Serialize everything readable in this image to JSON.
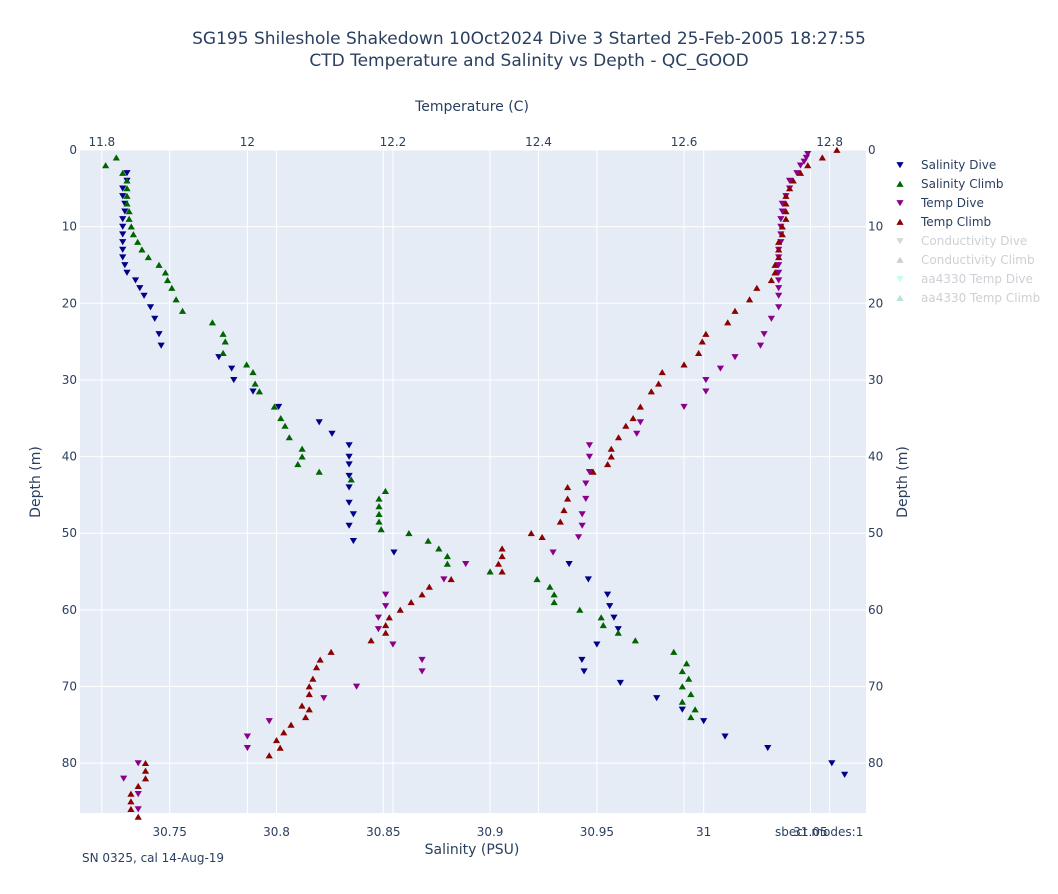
{
  "chart_data": {
    "type": "scatter",
    "title_lines": [
      "SG195 Shileshole Shakedown 10Oct2024 Dive 3 Started 25-Feb-2005 18:27:55",
      "CTD Temperature and Salinity vs Depth - QC_GOOD"
    ],
    "xlabel_top": "Temperature (C)",
    "xlabel_bottom": "Salinity (PSU)",
    "ylabel": "Depth (m)",
    "temp_axis": {
      "range": [
        11.77,
        12.85
      ],
      "ticks": [
        11.8,
        12,
        12.2,
        12.4,
        12.6,
        12.8
      ],
      "tick_labels": [
        "11.8",
        "12",
        "12.2",
        "12.4",
        "12.6",
        "12.8"
      ]
    },
    "salinity_axis": {
      "range": [
        30.708,
        31.076
      ],
      "ticks": [
        30.75,
        30.8,
        30.85,
        30.9,
        30.95,
        31,
        31.05
      ],
      "tick_labels": [
        "30.75",
        "30.8",
        "30.85",
        "30.9",
        "30.95",
        "31",
        "31.05"
      ]
    },
    "depth_axis": {
      "range": [
        0,
        86.5
      ],
      "reversed": true,
      "ticks": [
        0,
        10,
        20,
        30,
        40,
        50,
        60,
        70,
        80
      ],
      "tick_labels": [
        "0",
        "10",
        "20",
        "30",
        "40",
        "50",
        "60",
        "70",
        "80"
      ]
    },
    "grid": true,
    "legend_position": "right",
    "legend": [
      {
        "name": "Salinity Dive",
        "color": "#00008b",
        "marker": "triangle-down",
        "visible": true
      },
      {
        "name": "Salinity Climb",
        "color": "#006400",
        "marker": "triangle-up",
        "visible": true
      },
      {
        "name": "Temp Dive",
        "color": "#8b008b",
        "marker": "triangle-down",
        "visible": true
      },
      {
        "name": "Temp Climb",
        "color": "#8b0000",
        "marker": "triangle-up",
        "visible": true
      },
      {
        "name": "Conductivity Dive",
        "color": "#b0b0b0",
        "marker": "triangle-down",
        "visible": false
      },
      {
        "name": "Conductivity Climb",
        "color": "#a0a0a0",
        "marker": "triangle-up",
        "visible": false
      },
      {
        "name": "aa4330 Temp Dive",
        "color": "#7fffd4",
        "marker": "triangle-down",
        "visible": false
      },
      {
        "name": "aa4330 Temp Climb",
        "color": "#66cdaa",
        "marker": "triangle-up",
        "visible": false
      }
    ],
    "series": [
      {
        "name": "Salinity Dive",
        "axis": "salinity",
        "color": "#00008b",
        "marker": "triangle-down",
        "depth": [
          3,
          4,
          5,
          6,
          7,
          8,
          9,
          10,
          11,
          12,
          13,
          14,
          15,
          16,
          17,
          18,
          19,
          20.5,
          22,
          24,
          25.5,
          27,
          28.5,
          30,
          31.5,
          33.5,
          35.5,
          37,
          38.5,
          40,
          41,
          42.5,
          44,
          46,
          47.5,
          49,
          51,
          52.5,
          54,
          56,
          58,
          59.5,
          61,
          62.5,
          64.5,
          66.5,
          68,
          69.5,
          71.5,
          73,
          74.5,
          76.5,
          78,
          80,
          81.5
        ],
        "values": [
          30.73,
          30.73,
          30.728,
          30.728,
          30.729,
          30.729,
          30.728,
          30.728,
          30.728,
          30.728,
          30.728,
          30.728,
          30.729,
          30.73,
          30.734,
          30.736,
          30.738,
          30.741,
          30.743,
          30.745,
          30.746,
          30.773,
          30.779,
          30.78,
          30.789,
          30.801,
          30.82,
          30.826,
          30.834,
          30.834,
          30.834,
          30.834,
          30.834,
          30.834,
          30.836,
          30.834,
          30.836,
          30.855,
          30.937,
          30.946,
          30.955,
          30.956,
          30.958,
          30.96,
          30.95,
          30.943,
          30.944,
          30.961,
          30.978,
          30.99,
          31.0,
          31.01,
          31.03,
          31.06,
          31.066
        ]
      },
      {
        "name": "Salinity Climb",
        "axis": "salinity",
        "color": "#006400",
        "marker": "triangle-up",
        "depth": [
          1,
          2,
          3,
          4,
          5,
          6,
          7,
          8,
          9,
          10,
          11,
          12,
          13,
          14,
          15,
          16,
          17,
          18,
          19.5,
          21,
          22.5,
          24,
          25,
          26.5,
          28,
          29,
          30.5,
          31.5,
          33.5,
          35,
          36,
          37.5,
          39,
          40,
          41,
          42,
          43,
          44.5,
          45.5,
          46.5,
          47.5,
          48.5,
          49.5,
          50,
          51,
          52,
          53,
          54,
          55,
          56,
          57,
          58,
          59,
          60,
          61,
          62,
          63,
          64,
          65.5,
          67,
          68,
          69,
          70,
          71,
          72,
          73,
          74
        ],
        "values": [
          30.725,
          30.72,
          30.728,
          30.73,
          30.73,
          30.73,
          30.73,
          30.731,
          30.731,
          30.732,
          30.733,
          30.735,
          30.737,
          30.74,
          30.745,
          30.748,
          30.749,
          30.751,
          30.753,
          30.756,
          30.77,
          30.775,
          30.776,
          30.775,
          30.786,
          30.789,
          30.79,
          30.792,
          30.799,
          30.802,
          30.804,
          30.806,
          30.812,
          30.812,
          30.81,
          30.82,
          30.835,
          30.851,
          30.848,
          30.848,
          30.848,
          30.848,
          30.849,
          30.862,
          30.871,
          30.876,
          30.88,
          30.88,
          30.9,
          30.922,
          30.928,
          30.93,
          30.93,
          30.942,
          30.952,
          30.953,
          30.96,
          30.968,
          30.986,
          30.992,
          30.99,
          30.993,
          30.99,
          30.994,
          30.99,
          30.996,
          30.994
        ]
      },
      {
        "name": "Temp Dive",
        "axis": "temperature",
        "color": "#8b008b",
        "marker": "triangle-down",
        "depth": [
          0.5,
          1,
          1.5,
          2,
          3,
          4,
          5,
          6,
          7,
          8,
          9,
          10,
          11,
          12,
          13,
          14,
          15,
          16,
          17,
          18,
          19,
          20.5,
          22,
          24,
          25.5,
          27,
          28.5,
          30,
          31.5,
          33.5,
          35.5,
          37,
          38.5,
          40,
          42,
          43.5,
          45.5,
          47.5,
          49,
          50.5,
          52.5,
          54,
          56,
          58,
          59.5,
          61,
          62.5,
          64.5,
          66.5,
          68,
          70,
          71.5,
          74.5,
          76.5,
          78,
          80,
          82,
          84,
          86
        ],
        "values": [
          12.77,
          12.768,
          12.765,
          12.76,
          12.755,
          12.745,
          12.745,
          12.74,
          12.735,
          12.735,
          12.733,
          12.733,
          12.733,
          12.733,
          12.73,
          12.73,
          12.73,
          12.73,
          12.73,
          12.73,
          12.73,
          12.73,
          12.72,
          12.71,
          12.705,
          12.67,
          12.65,
          12.63,
          12.63,
          12.6,
          12.54,
          12.535,
          12.47,
          12.47,
          12.47,
          12.465,
          12.465,
          12.46,
          12.46,
          12.455,
          12.42,
          12.3,
          12.27,
          12.19,
          12.19,
          12.18,
          12.18,
          12.2,
          12.24,
          12.24,
          12.15,
          12.105,
          12.03,
          12.0,
          12.0,
          11.85,
          11.83,
          11.85,
          11.85
        ]
      },
      {
        "name": "Temp Climb",
        "axis": "temperature",
        "color": "#8b0000",
        "marker": "triangle-up",
        "depth": [
          0,
          1,
          2,
          3,
          4,
          5,
          6,
          7,
          8,
          9,
          10,
          11,
          12,
          13,
          14,
          15,
          16,
          17,
          18,
          19.5,
          21,
          22.5,
          24,
          25,
          26.5,
          28,
          29,
          30.5,
          31.5,
          33.5,
          35,
          36,
          37.5,
          39,
          40,
          41,
          42,
          44,
          45.5,
          47,
          48.5,
          50,
          50.5,
          52,
          53,
          54,
          55,
          56,
          57,
          58,
          59,
          60,
          61,
          62,
          63,
          64,
          65.5,
          66.5,
          67.5,
          69,
          70,
          71,
          72.5,
          73,
          74,
          75,
          76,
          77,
          78,
          79,
          80,
          81,
          82,
          83,
          84,
          85,
          86,
          87
        ],
        "values": [
          12.81,
          12.79,
          12.77,
          12.76,
          12.75,
          12.745,
          12.74,
          12.74,
          12.74,
          12.74,
          12.735,
          12.735,
          12.73,
          12.73,
          12.73,
          12.725,
          12.725,
          12.72,
          12.7,
          12.69,
          12.67,
          12.66,
          12.63,
          12.625,
          12.62,
          12.6,
          12.57,
          12.565,
          12.555,
          12.54,
          12.53,
          12.52,
          12.51,
          12.5,
          12.5,
          12.495,
          12.475,
          12.44,
          12.44,
          12.435,
          12.43,
          12.39,
          12.405,
          12.35,
          12.35,
          12.345,
          12.35,
          12.28,
          12.25,
          12.24,
          12.225,
          12.21,
          12.195,
          12.19,
          12.19,
          12.17,
          12.115,
          12.1,
          12.095,
          12.09,
          12.085,
          12.085,
          12.075,
          12.085,
          12.08,
          12.06,
          12.05,
          12.04,
          12.045,
          12.03,
          11.86,
          11.86,
          11.86,
          11.85,
          11.84,
          11.84,
          11.84,
          11.85
        ]
      }
    ]
  },
  "footer": {
    "left_note": "SN 0325, cal 14-Aug-19",
    "right_note": "sbect modes:1"
  }
}
